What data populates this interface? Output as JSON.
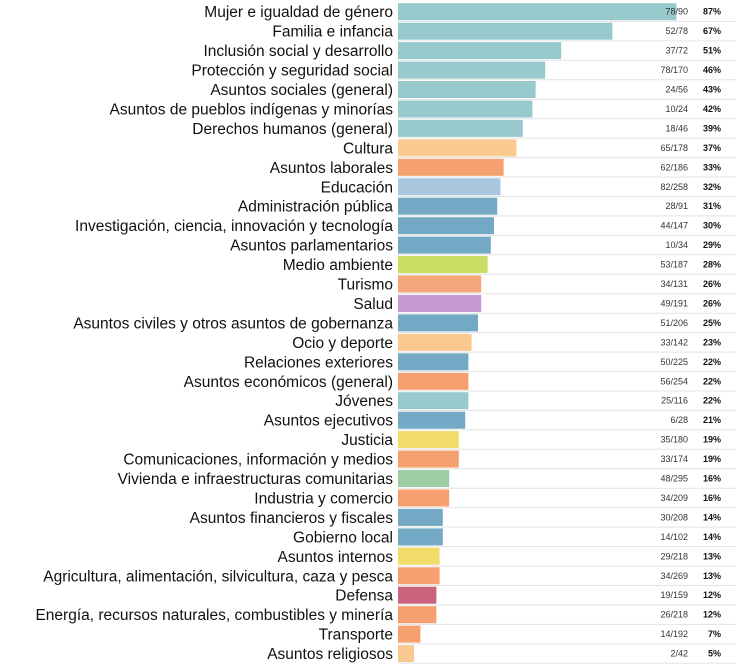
{
  "chart_data": {
    "type": "bar",
    "orientation": "horizontal",
    "xlim": [
      0,
      100
    ],
    "rows": [
      {
        "label": "Mujer e igualdad de género",
        "fraction": "78/90",
        "percent_label": "87%",
        "value": 87,
        "color": "#97c9cd"
      },
      {
        "label": "Familia e infancia",
        "fraction": "52/78",
        "percent_label": "67%",
        "value": 67,
        "color": "#97c9cd"
      },
      {
        "label": "Inclusión social y desarrollo",
        "fraction": "37/72",
        "percent_label": "51%",
        "value": 51,
        "color": "#97c9cd"
      },
      {
        "label": "Protección y seguridad social",
        "fraction": "78/170",
        "percent_label": "46%",
        "value": 46,
        "color": "#97c9cd"
      },
      {
        "label": "Asuntos sociales (general)",
        "fraction": "24/56",
        "percent_label": "43%",
        "value": 43,
        "color": "#97c9cd"
      },
      {
        "label": "Asuntos de pueblos indígenas y minorías",
        "fraction": "10/24",
        "percent_label": "42%",
        "value": 42,
        "color": "#97c9cd"
      },
      {
        "label": "Derechos humanos (general)",
        "fraction": "18/46",
        "percent_label": "39%",
        "value": 39,
        "color": "#97c9cd"
      },
      {
        "label": "Cultura",
        "fraction": "65/178",
        "percent_label": "37%",
        "value": 37,
        "color": "#f9c98f"
      },
      {
        "label": "Asuntos laborales",
        "fraction": "62/186",
        "percent_label": "33%",
        "value": 33,
        "color": "#f5a06e"
      },
      {
        "label": "Educación",
        "fraction": "82/258",
        "percent_label": "32%",
        "value": 32,
        "color": "#a9c8e0"
      },
      {
        "label": "Administración pública",
        "fraction": "28/91",
        "percent_label": "31%",
        "value": 31,
        "color": "#73a9c5"
      },
      {
        "label": "Investigación, ciencia, innovación y tecnología",
        "fraction": "44/147",
        "percent_label": "30%",
        "value": 30,
        "color": "#73a9c5"
      },
      {
        "label": "Asuntos parlamentarios",
        "fraction": "10/34",
        "percent_label": "29%",
        "value": 29,
        "color": "#73a9c5"
      },
      {
        "label": "Medio ambiente",
        "fraction": "53/187",
        "percent_label": "28%",
        "value": 28,
        "color": "#c8de62"
      },
      {
        "label": "Turismo",
        "fraction": "34/131",
        "percent_label": "26%",
        "value": 26,
        "color": "#f5a77b"
      },
      {
        "label": "Salud",
        "fraction": "49/191",
        "percent_label": "26%",
        "value": 26,
        "color": "#c79ad6"
      },
      {
        "label": "Asuntos civiles y otros asuntos de gobernanza",
        "fraction": "51/206",
        "percent_label": "25%",
        "value": 25,
        "color": "#73a9c5"
      },
      {
        "label": "Ocio y deporte",
        "fraction": "33/142",
        "percent_label": "23%",
        "value": 23,
        "color": "#f9c98f"
      },
      {
        "label": "Relaciones exteriores",
        "fraction": "50/225",
        "percent_label": "22%",
        "value": 22,
        "color": "#73a9c5"
      },
      {
        "label": "Asuntos económicos (general)",
        "fraction": "56/254",
        "percent_label": "22%",
        "value": 22,
        "color": "#f5a06e"
      },
      {
        "label": "Jóvenes",
        "fraction": "25/116",
        "percent_label": "22%",
        "value": 22,
        "color": "#97c9cd"
      },
      {
        "label": "Asuntos ejecutivos",
        "fraction": "6/28",
        "percent_label": "21%",
        "value": 21,
        "color": "#73a9c5"
      },
      {
        "label": "Justicia",
        "fraction": "35/180",
        "percent_label": "19%",
        "value": 19,
        "color": "#f1dc6a"
      },
      {
        "label": "Comunicaciones, información y medios",
        "fraction": "33/174",
        "percent_label": "19%",
        "value": 19,
        "color": "#f5a06e"
      },
      {
        "label": "Vivienda e infraestructuras comunitarias",
        "fraction": "48/295",
        "percent_label": "16%",
        "value": 16,
        "color": "#9fcea6"
      },
      {
        "label": "Industria y comercio",
        "fraction": "34/209",
        "percent_label": "16%",
        "value": 16,
        "color": "#f5a06e"
      },
      {
        "label": "Asuntos financieros y fiscales",
        "fraction": "30/208",
        "percent_label": "14%",
        "value": 14,
        "color": "#73a9c5"
      },
      {
        "label": "Gobierno local",
        "fraction": "14/102",
        "percent_label": "14%",
        "value": 14,
        "color": "#73a9c5"
      },
      {
        "label": "Asuntos internos",
        "fraction": "29/218",
        "percent_label": "13%",
        "value": 13,
        "color": "#f1dc6a"
      },
      {
        "label": "Agricultura, alimentación, silvicultura, caza y pesca",
        "fraction": "34/269",
        "percent_label": "13%",
        "value": 13,
        "color": "#f5a06e"
      },
      {
        "label": "Defensa",
        "fraction": "19/159",
        "percent_label": "12%",
        "value": 12,
        "color": "#c9637e"
      },
      {
        "label": "Energía, recursos naturales, combustibles y minería",
        "fraction": "26/218",
        "percent_label": "12%",
        "value": 12,
        "color": "#f5a06e"
      },
      {
        "label": "Transporte",
        "fraction": "14/192",
        "percent_label": "7%",
        "value": 7,
        "color": "#f5a06e"
      },
      {
        "label": "Asuntos religiosos",
        "fraction": "2/42",
        "percent_label": "5%",
        "value": 5,
        "color": "#f9c98f"
      }
    ]
  }
}
